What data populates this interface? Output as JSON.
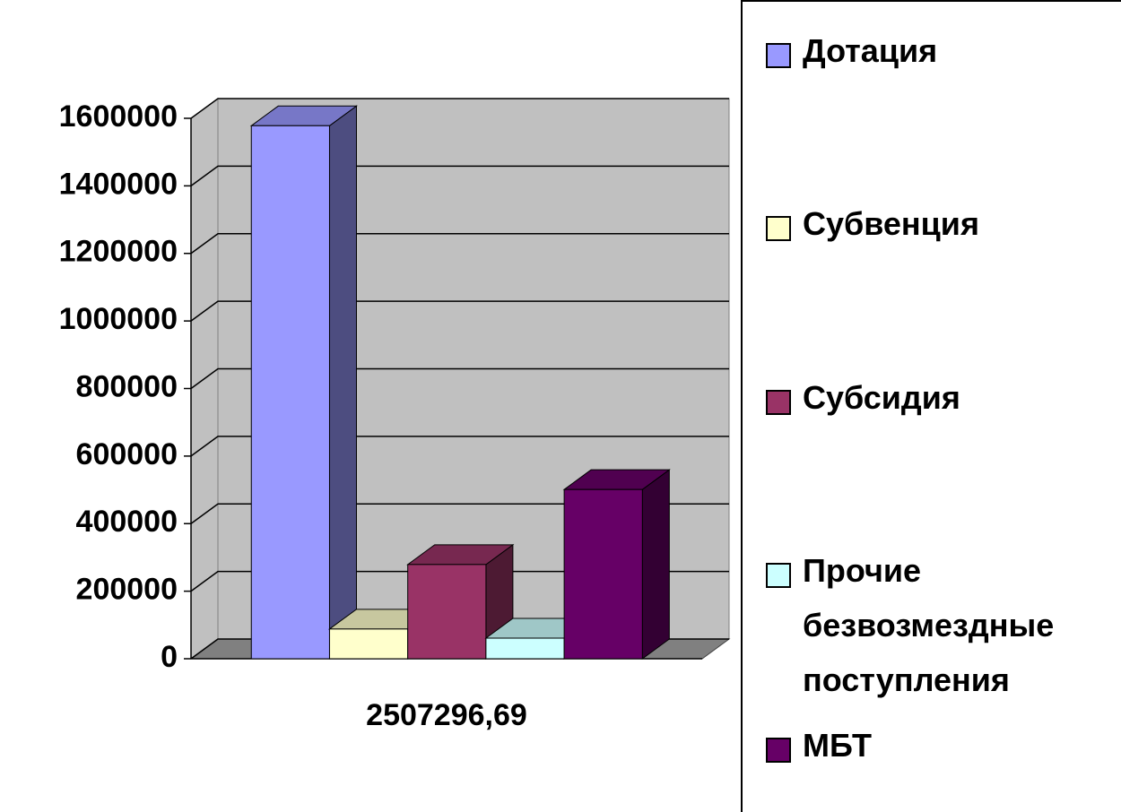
{
  "chart_data": {
    "type": "bar3d",
    "categories": [
      "2507296,69"
    ],
    "series": [
      {
        "name": "Дотация",
        "color": "#9999ff",
        "values": [
          1578000
        ]
      },
      {
        "name": "Субвенция",
        "color": "#ffffcc",
        "values": [
          88000
        ]
      },
      {
        "name": "Субсидия",
        "color": "#993366",
        "values": [
          279000
        ]
      },
      {
        "name": "Прочие безвозмездные поступления",
        "color": "#ccffff",
        "values": [
          61000
        ]
      },
      {
        "name": "МБТ",
        "color": "#660066",
        "values": [
          501000
        ]
      }
    ],
    "ylim": [
      0,
      1600000
    ],
    "yticks": [
      0,
      200000,
      400000,
      600000,
      800000,
      1000000,
      1200000,
      1400000,
      1600000
    ],
    "grid": true,
    "legend": "right"
  }
}
